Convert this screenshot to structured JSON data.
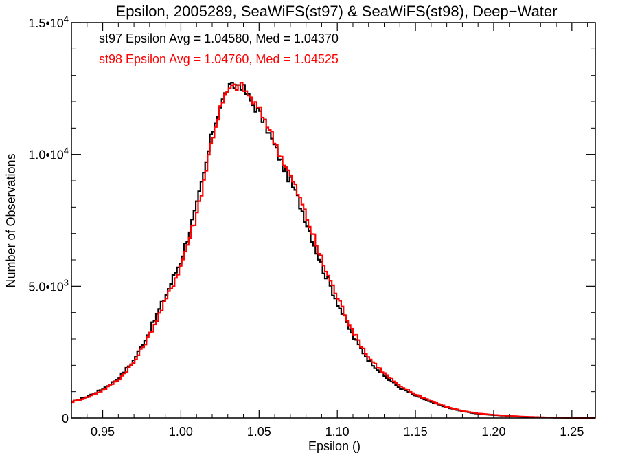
{
  "chart_data": {
    "type": "line",
    "title": "Epsilon, 2005289, SeaWiFS(st97) & SeaWiFS(st98), Deep−Water",
    "xlabel": "Epsilon ()",
    "ylabel": "Number of Observations",
    "xlim": [
      0.93,
      1.265
    ],
    "ylim": [
      0,
      15000
    ],
    "x_ticks": [
      "0.95",
      "1.00",
      "1.05",
      "1.10",
      "1.15",
      "1.20",
      "1.25"
    ],
    "x_tick_values": [
      0.95,
      1.0,
      1.05,
      1.1,
      1.15,
      1.2,
      1.25
    ],
    "y_ticks": [
      {
        "value": 0,
        "mant": "0",
        "exp": ""
      },
      {
        "value": 5000,
        "mant": "5.0•10",
        "exp": "3"
      },
      {
        "value": 10000,
        "mant": "1.0•10",
        "exp": "4"
      },
      {
        "value": 15000,
        "mant": "1.5•10",
        "exp": "4"
      }
    ],
    "annotations": [
      {
        "text": "st97 Epsilon Avg = 1.04580, Med = 1.04370",
        "color": "#000000"
      },
      {
        "text": "st98 Epsilon Avg = 1.04760, Med = 1.04525",
        "color": "#ff0000"
      }
    ],
    "x": [
      0.93,
      0.94,
      0.95,
      0.96,
      0.97,
      0.98,
      0.99,
      1.0,
      1.01,
      1.015,
      1.02,
      1.025,
      1.03,
      1.035,
      1.038,
      1.04,
      1.045,
      1.05,
      1.055,
      1.06,
      1.065,
      1.07,
      1.075,
      1.08,
      1.09,
      1.1,
      1.11,
      1.12,
      1.13,
      1.14,
      1.15,
      1.16,
      1.17,
      1.18,
      1.19,
      1.2,
      1.21,
      1.22,
      1.23,
      1.24,
      1.25,
      1.26,
      1.265
    ],
    "series": [
      {
        "name": "st97",
        "color": "#000000",
        "values": [
          600,
          800,
          1100,
          1500,
          2200,
          3300,
          4600,
          6000,
          8000,
          9300,
          10800,
          11800,
          12500,
          12600,
          12700,
          12500,
          12000,
          11600,
          11000,
          10300,
          9600,
          9000,
          8300,
          7500,
          5800,
          4400,
          3100,
          2200,
          1600,
          1150,
          850,
          600,
          400,
          250,
          160,
          110,
          70,
          40,
          25,
          10,
          5,
          2,
          0
        ]
      },
      {
        "name": "st98",
        "color": "#ff0000",
        "values": [
          600,
          780,
          1050,
          1450,
          2100,
          3150,
          4400,
          5800,
          7700,
          9100,
          10600,
          11700,
          12400,
          12600,
          12600,
          12500,
          12100,
          11700,
          11200,
          10500,
          9800,
          9200,
          8500,
          7700,
          6000,
          4600,
          3300,
          2300,
          1700,
          1200,
          900,
          650,
          420,
          270,
          170,
          120,
          80,
          50,
          30,
          15,
          8,
          3,
          0
        ]
      }
    ]
  }
}
